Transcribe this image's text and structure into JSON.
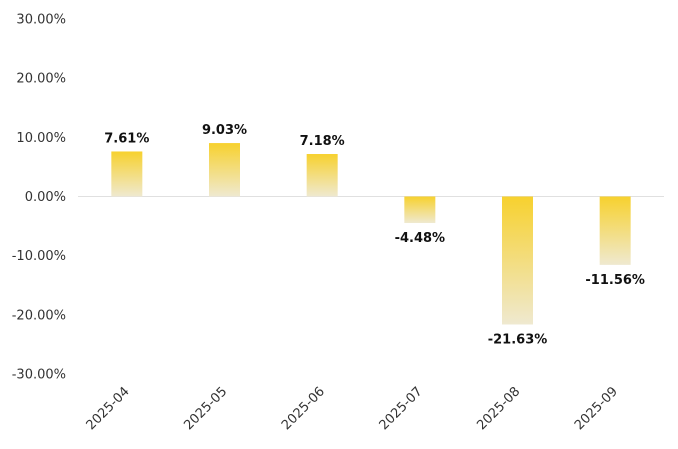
{
  "chart_data": {
    "type": "bar",
    "categories": [
      "2025-04",
      "2025-05",
      "2025-06",
      "2025-07",
      "2025-08",
      "2025-09"
    ],
    "values": [
      7.61,
      9.03,
      7.18,
      -4.48,
      -21.63,
      -11.56
    ],
    "data_labels": [
      "7.61%",
      "9.03%",
      "7.18%",
      "-4.48%",
      "-21.63%",
      "-11.56%"
    ],
    "y_ticks": [
      30,
      20,
      10,
      0,
      -10,
      -20,
      -30
    ],
    "y_tick_labels": [
      "30.00%",
      "20.00%",
      "10.00%",
      "0.00%",
      "-10.00%",
      "-20.00%",
      "-30.00%"
    ],
    "ylim": [
      -30,
      30
    ],
    "grid": false,
    "legend": "none",
    "title": "",
    "xlabel": "",
    "ylabel": "",
    "colors": {
      "bar_top": "#f7d12e",
      "bar_bottom": "#efe9d0",
      "zero_line": "#e0e0e0"
    }
  }
}
